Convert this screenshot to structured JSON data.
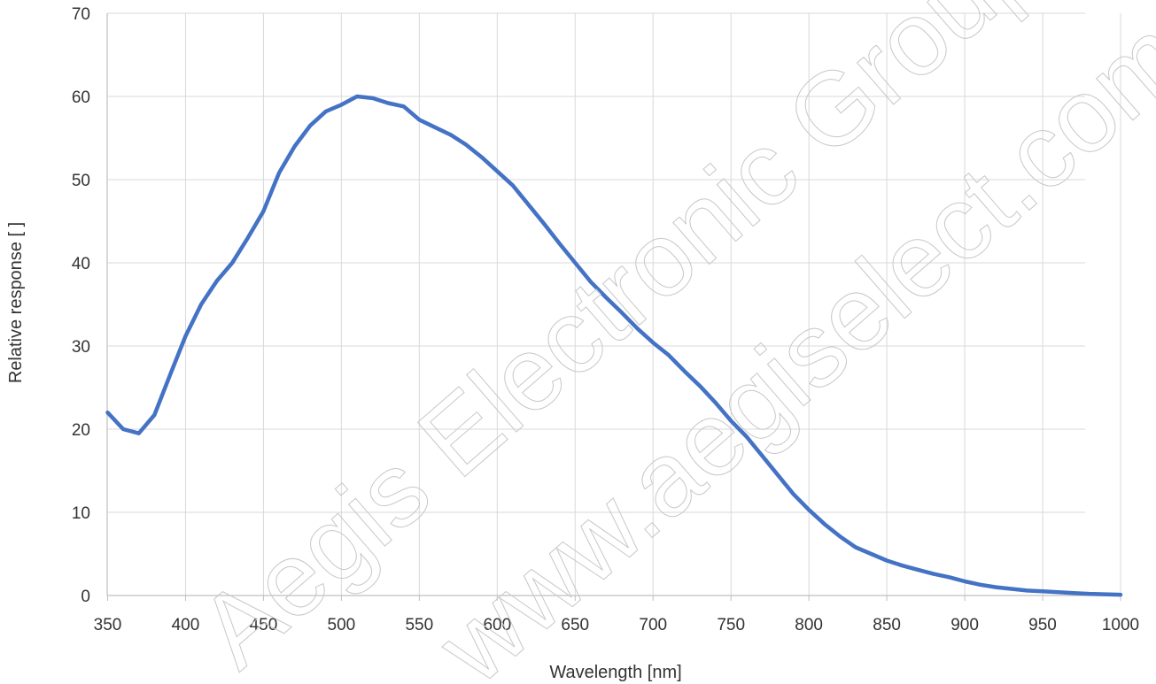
{
  "chart_data": {
    "type": "line",
    "title": "",
    "xlabel": "Wavelength [nm]",
    "ylabel": "Relative response [ ]",
    "xlim": [
      350,
      1000
    ],
    "ylim": [
      0,
      70
    ],
    "xticks": [
      350,
      400,
      450,
      500,
      550,
      600,
      650,
      700,
      750,
      800,
      850,
      900,
      950,
      1000
    ],
    "yticks": [
      0,
      10,
      20,
      30,
      40,
      50,
      60,
      70
    ],
    "grid": true,
    "legend": "none",
    "series": [
      {
        "color": "#4472c4",
        "x": [
          350,
          360,
          370,
          380,
          390,
          400,
          410,
          420,
          430,
          440,
          450,
          460,
          470,
          480,
          490,
          500,
          510,
          520,
          530,
          540,
          550,
          560,
          570,
          580,
          590,
          600,
          610,
          620,
          630,
          640,
          650,
          660,
          670,
          680,
          690,
          700,
          710,
          720,
          730,
          740,
          750,
          760,
          770,
          780,
          790,
          800,
          810,
          820,
          830,
          840,
          850,
          860,
          870,
          880,
          890,
          900,
          910,
          920,
          930,
          940,
          950,
          960,
          970,
          980,
          990,
          1000
        ],
        "y": [
          22.0,
          20.0,
          19.5,
          21.7,
          26.5,
          31.2,
          35.0,
          37.8,
          40.0,
          43.0,
          46.2,
          50.8,
          54.0,
          56.5,
          58.2,
          59.0,
          60.0,
          59.8,
          59.2,
          58.8,
          57.2,
          56.3,
          55.4,
          54.2,
          52.7,
          51.0,
          49.3,
          47.0,
          44.7,
          42.3,
          40.0,
          37.7,
          35.8,
          34.0,
          32.1,
          30.4,
          28.9,
          27.0,
          25.2,
          23.2,
          21.0,
          19.1,
          16.8,
          14.5,
          12.2,
          10.3,
          8.6,
          7.1,
          5.8,
          5.0,
          4.2,
          3.6,
          3.1,
          2.6,
          2.2,
          1.7,
          1.3,
          1.0,
          0.8,
          0.6,
          0.5,
          0.4,
          0.3,
          0.2,
          0.15,
          0.1
        ]
      }
    ]
  },
  "watermark": {
    "line1": "Aegis Electronic Group",
    "line2": "www.aegiselect.com"
  }
}
